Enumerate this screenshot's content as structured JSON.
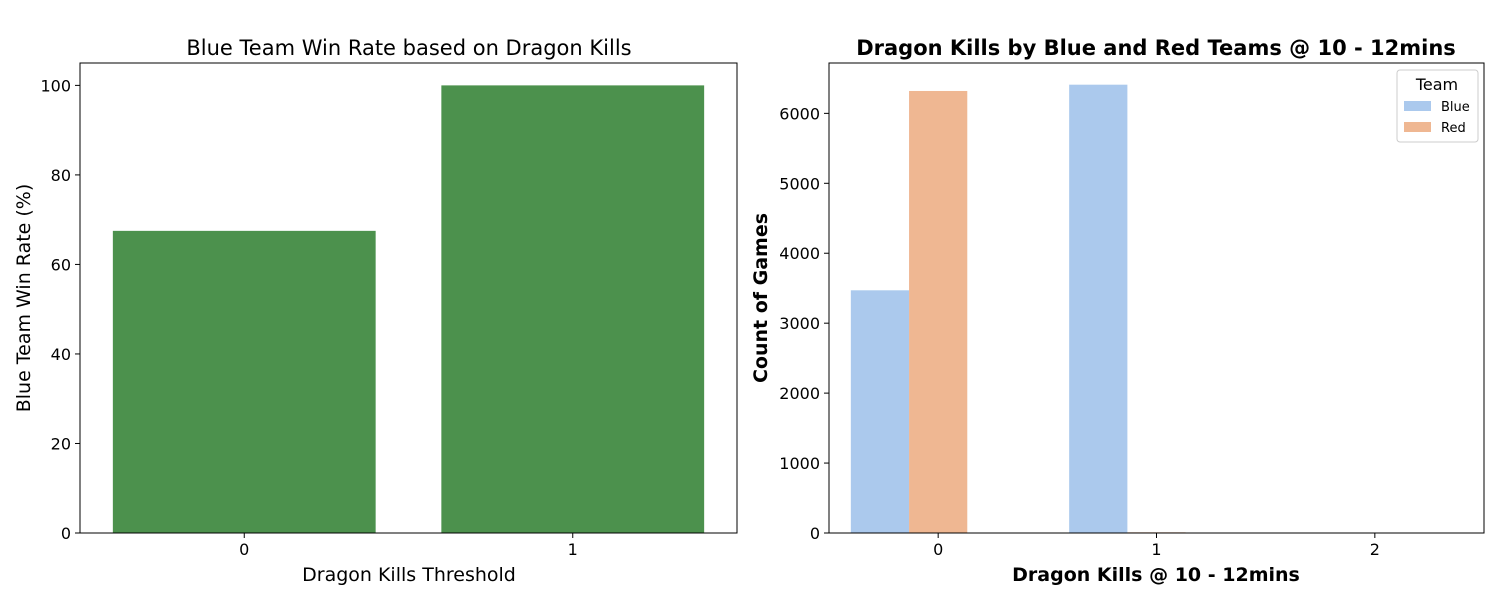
{
  "chart_data": [
    {
      "type": "bar",
      "title": "Blue Team Win Rate based on Dragon Kills",
      "xlabel": "Dragon Kills Threshold",
      "ylabel": "Blue Team Win Rate (%)",
      "categories": [
        "0",
        "1"
      ],
      "values": [
        67.5,
        100
      ],
      "ylim": [
        0,
        105
      ],
      "yticks": [
        "0",
        "20",
        "40",
        "60",
        "80",
        "100"
      ],
      "bar_color": "#4c914d",
      "grid": false
    },
    {
      "type": "bar",
      "title": "Dragon Kills by Blue and Red Teams @ 10 - 12mins",
      "xlabel": "Dragon Kills @ 10 - 12mins",
      "ylabel": "Count of Games",
      "categories": [
        "0",
        "1",
        "2"
      ],
      "series": [
        {
          "name": "Blue",
          "color": "#abc9ed",
          "values": [
            3470,
            6410,
            3
          ]
        },
        {
          "name": "Red",
          "color": "#efb792",
          "values": [
            6320,
            10,
            3
          ]
        }
      ],
      "ylim": [
        0,
        6720
      ],
      "yticks": [
        "0",
        "1000",
        "2000",
        "3000",
        "4000",
        "5000",
        "6000"
      ],
      "legend": {
        "title": "Team",
        "placement": "top-right"
      },
      "grid": false
    }
  ]
}
